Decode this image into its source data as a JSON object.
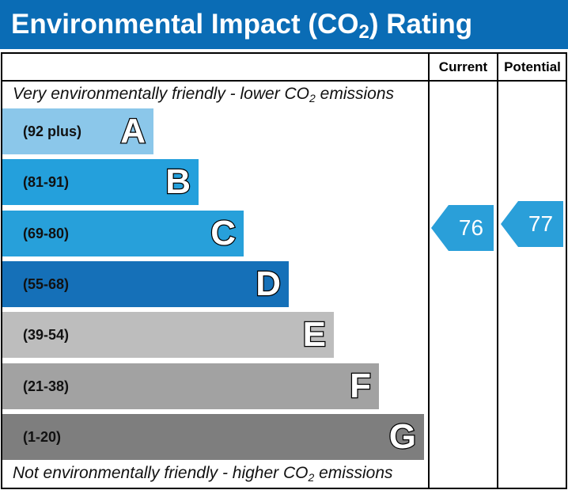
{
  "header": {
    "title_prefix": "Environmental Impact (CO",
    "title_sub": "2",
    "title_suffix": ") Rating"
  },
  "columns": {
    "current": "Current",
    "potential": "Potential"
  },
  "captions": {
    "top_prefix": "Very environmentally friendly - lower CO",
    "top_sub": "2",
    "top_suffix": " emissions",
    "bottom_prefix": "Not environmentally friendly - higher CO",
    "bottom_sub": "2",
    "bottom_suffix": " emissions"
  },
  "chart_data": {
    "type": "bar",
    "bands": [
      {
        "range": "(92 plus)",
        "letter": "A",
        "color": "#8bc7ea"
      },
      {
        "range": "(81-91)",
        "letter": "B",
        "color": "#24a0dc"
      },
      {
        "range": "(69-80)",
        "letter": "C",
        "color": "#27a0da"
      },
      {
        "range": "(55-68)",
        "letter": "D",
        "color": "#1570b8"
      },
      {
        "range": "(39-54)",
        "letter": "E",
        "color": "#bdbdbd"
      },
      {
        "range": "(21-38)",
        "letter": "F",
        "color": "#a2a2a2"
      },
      {
        "range": "(1-20)",
        "letter": "G",
        "color": "#7e7e7e"
      }
    ],
    "current": {
      "value": "76",
      "band": "C",
      "color": "#2a9fd9"
    },
    "potential": {
      "value": "77",
      "band": "C",
      "color": "#2a9fd9"
    }
  }
}
